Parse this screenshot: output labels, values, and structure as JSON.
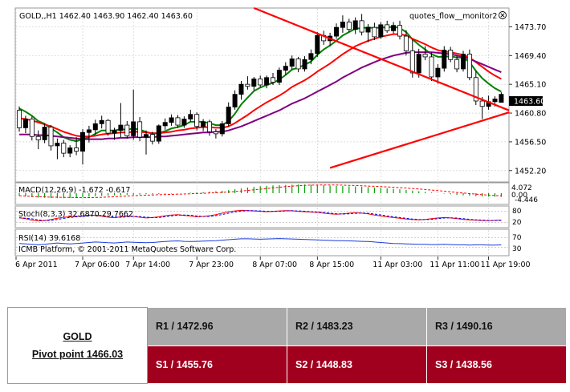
{
  "colors": {
    "background": "#ffffff",
    "grid": "#c8c8c8",
    "candle_up": "#000000",
    "candle_down": "#ffffff",
    "ma_fast": "#008000",
    "ma_mid": "#ff0000",
    "ma_slow": "#800080",
    "trendline": "#ff0000",
    "macd_hist": "#00a000",
    "macd_signal": "#ff0000",
    "stoch_main": "#ff0000",
    "stoch_signal": "#0000ff",
    "rsi": "#1b3bd8",
    "price_badge_bg": "#000000",
    "pivot_r_bg": "#a9a9a9",
    "pivot_s_bg": "#a0001e"
  },
  "chart": {
    "symbol_line": "GOLD,,H1  1462.40 1463.90 1462.40 1463.60",
    "watermark": "quotes_flow__monitor2",
    "current_price": "1463.60",
    "price_ticks": [
      "1473.70",
      "1469.40",
      "1465.10",
      "1460.80",
      "1456.50",
      "1452.20"
    ],
    "time_labels": [
      "6 Apr 2011",
      "7 Apr 06:00",
      "7 Apr 14:00",
      "7 Apr 23:00",
      "8 Apr 07:00",
      "8 Apr 15:00",
      "11 Apr 03:00",
      "11 Apr 11:00",
      "11 Apr 19:00"
    ],
    "macd": {
      "label": "MACD(12,26,9) -1.672 -0.617",
      "ticks": [
        "4.072",
        "0.00",
        "-4.446"
      ]
    },
    "stoch": {
      "label": "Stoch(8,3,3) 32.6870 29.7662",
      "ticks": [
        "80",
        "20"
      ]
    },
    "rsi": {
      "label": "RSI(14) 39.6168",
      "ticks": [
        "70",
        "30"
      ]
    },
    "copyright": "ICMB Platform, © 2001-2011 MetaQuotes Software Corp."
  },
  "chart_data": {
    "type": "candlestick",
    "symbol": "GOLD",
    "timeframe": "H1",
    "ylim": [
      1450.5,
      1476.5
    ],
    "candles": [
      [
        1461.2,
        1461.8,
        1458.0,
        1458.6
      ],
      [
        1458.6,
        1460.4,
        1457.8,
        1459.9
      ],
      [
        1459.9,
        1460.3,
        1456.7,
        1457.3
      ],
      [
        1457.3,
        1458.2,
        1455.4,
        1456.8
      ],
      [
        1456.8,
        1459.2,
        1456.3,
        1458.7
      ],
      [
        1458.7,
        1459.0,
        1455.2,
        1455.9
      ],
      [
        1455.9,
        1457.0,
        1453.9,
        1456.3
      ],
      [
        1456.3,
        1456.8,
        1454.2,
        1454.8
      ],
      [
        1454.8,
        1456.0,
        1454.2,
        1455.6
      ],
      [
        1455.6,
        1457.2,
        1454.5,
        1455.1
      ],
      [
        1455.1,
        1458.4,
        1453.1,
        1457.9
      ],
      [
        1457.9,
        1458.9,
        1456.4,
        1458.3
      ],
      [
        1458.3,
        1459.8,
        1457.6,
        1459.2
      ],
      [
        1459.2,
        1460.4,
        1458.5,
        1459.7
      ],
      [
        1459.7,
        1459.9,
        1457.4,
        1457.8
      ],
      [
        1457.8,
        1458.6,
        1456.8,
        1458.2
      ],
      [
        1458.2,
        1462.3,
        1457.2,
        1459.0
      ],
      [
        1459.0,
        1459.6,
        1457.0,
        1457.4
      ],
      [
        1457.4,
        1464.3,
        1456.8,
        1459.5
      ],
      [
        1459.5,
        1460.2,
        1456.6,
        1457.2
      ],
      [
        1457.2,
        1458.2,
        1454.6,
        1457.6
      ],
      [
        1457.6,
        1458.0,
        1456.1,
        1456.6
      ],
      [
        1456.6,
        1459.1,
        1456.2,
        1458.9
      ],
      [
        1458.9,
        1460.0,
        1458.3,
        1459.4
      ],
      [
        1459.4,
        1460.6,
        1458.9,
        1460.1
      ],
      [
        1460.1,
        1460.5,
        1458.6,
        1459.0
      ],
      [
        1459.0,
        1460.3,
        1458.6,
        1459.9
      ],
      [
        1459.9,
        1461.3,
        1459.5,
        1460.6
      ],
      [
        1460.6,
        1460.9,
        1458.2,
        1458.8
      ],
      [
        1458.8,
        1459.9,
        1458.1,
        1459.5
      ],
      [
        1459.5,
        1459.8,
        1457.4,
        1458.0
      ],
      [
        1458.0,
        1458.4,
        1457.0,
        1457.7
      ],
      [
        1457.7,
        1459.6,
        1457.3,
        1459.2
      ],
      [
        1459.2,
        1462.4,
        1458.8,
        1461.7
      ],
      [
        1461.7,
        1464.2,
        1461.3,
        1463.6
      ],
      [
        1463.6,
        1465.6,
        1462.8,
        1465.1
      ],
      [
        1465.1,
        1466.3,
        1464.3,
        1464.8
      ],
      [
        1464.8,
        1466.2,
        1464.2,
        1465.9
      ],
      [
        1465.9,
        1466.4,
        1464.6,
        1465.0
      ],
      [
        1465.0,
        1466.4,
        1464.5,
        1466.1
      ],
      [
        1466.1,
        1466.8,
        1465.0,
        1465.4
      ],
      [
        1465.4,
        1467.6,
        1465.0,
        1467.2
      ],
      [
        1467.2,
        1468.4,
        1466.5,
        1467.8
      ],
      [
        1467.8,
        1469.4,
        1467.3,
        1468.9
      ],
      [
        1468.9,
        1469.2,
        1466.9,
        1467.4
      ],
      [
        1467.4,
        1469.3,
        1467.0,
        1468.8
      ],
      [
        1468.8,
        1470.3,
        1468.1,
        1469.7
      ],
      [
        1469.7,
        1472.9,
        1469.2,
        1472.4
      ],
      [
        1472.4,
        1473.1,
        1471.0,
        1471.6
      ],
      [
        1471.6,
        1472.8,
        1470.8,
        1472.3
      ],
      [
        1472.3,
        1474.2,
        1471.9,
        1473.6
      ],
      [
        1473.6,
        1475.4,
        1472.8,
        1474.4
      ],
      [
        1474.4,
        1474.9,
        1472.9,
        1473.3
      ],
      [
        1473.3,
        1475.1,
        1472.6,
        1474.6
      ],
      [
        1474.6,
        1475.6,
        1472.4,
        1472.9
      ],
      [
        1472.9,
        1474.1,
        1471.4,
        1473.6
      ],
      [
        1473.6,
        1474.3,
        1471.7,
        1472.2
      ],
      [
        1472.2,
        1474.4,
        1471.9,
        1474.0
      ],
      [
        1474.0,
        1474.6,
        1472.8,
        1473.1
      ],
      [
        1473.1,
        1474.4,
        1472.7,
        1473.9
      ],
      [
        1473.9,
        1474.6,
        1471.8,
        1472.3
      ],
      [
        1472.3,
        1473.2,
        1469.4,
        1470.1
      ],
      [
        1470.1,
        1471.8,
        1466.1,
        1466.8
      ],
      [
        1466.8,
        1470.4,
        1466.1,
        1469.6
      ],
      [
        1469.6,
        1470.8,
        1468.7,
        1469.2
      ],
      [
        1469.2,
        1469.9,
        1465.6,
        1466.2
      ],
      [
        1466.2,
        1468.1,
        1465.2,
        1467.5
      ],
      [
        1467.5,
        1470.8,
        1467.0,
        1470.2
      ],
      [
        1470.2,
        1470.7,
        1468.4,
        1468.8
      ],
      [
        1468.8,
        1469.4,
        1466.9,
        1467.4
      ],
      [
        1467.4,
        1470.1,
        1467.0,
        1469.6
      ],
      [
        1469.6,
        1470.3,
        1465.7,
        1466.1
      ],
      [
        1466.1,
        1467.1,
        1462.0,
        1462.6
      ],
      [
        1462.6,
        1463.2,
        1459.9,
        1461.8
      ],
      [
        1461.8,
        1463.4,
        1461.3,
        1462.5
      ],
      [
        1462.5,
        1463.3,
        1461.8,
        1462.9
      ],
      [
        1462.4,
        1463.9,
        1462.4,
        1463.6
      ]
    ],
    "series": [
      {
        "name": "MA fast",
        "color": "#008000",
        "values": [
          1461.5,
          1461.0,
          1460.4,
          1459.6,
          1459.2,
          1458.5,
          1457.9,
          1457.2,
          1456.8,
          1456.6,
          1456.9,
          1457.2,
          1457.7,
          1458.2,
          1458.2,
          1458.2,
          1458.4,
          1458.3,
          1458.5,
          1458.3,
          1458.0,
          1457.7,
          1457.8,
          1458.1,
          1458.5,
          1458.7,
          1459.0,
          1459.5,
          1459.5,
          1459.5,
          1459.3,
          1459.0,
          1459.0,
          1459.6,
          1460.7,
          1462.1,
          1463.1,
          1464.1,
          1464.6,
          1465.0,
          1465.3,
          1465.8,
          1466.5,
          1467.3,
          1467.6,
          1468.0,
          1468.5,
          1469.5,
          1470.3,
          1470.9,
          1471.6,
          1472.4,
          1472.9,
          1473.4,
          1473.5,
          1473.6,
          1473.5,
          1473.6,
          1473.6,
          1473.7,
          1473.5,
          1472.9,
          1471.8,
          1471.0,
          1470.3,
          1469.6,
          1469.2,
          1469.2,
          1469.3,
          1469.1,
          1469.1,
          1468.4,
          1467.1,
          1466.0,
          1465.2,
          1464.5,
          1464.0
        ]
      },
      {
        "name": "MA mid",
        "color": "#ff0000",
        "values": [
          1460.0,
          1459.9,
          1459.7,
          1459.4,
          1459.1,
          1458.8,
          1458.4,
          1458.0,
          1457.7,
          1457.4,
          1457.3,
          1457.3,
          1457.4,
          1457.6,
          1457.7,
          1457.8,
          1457.9,
          1457.9,
          1458.0,
          1458.0,
          1457.9,
          1457.8,
          1457.8,
          1457.9,
          1458.0,
          1458.2,
          1458.3,
          1458.5,
          1458.6,
          1458.7,
          1458.7,
          1458.6,
          1458.6,
          1458.8,
          1459.3,
          1459.9,
          1460.5,
          1461.2,
          1461.8,
          1462.4,
          1462.9,
          1463.4,
          1464.0,
          1464.7,
          1465.2,
          1465.7,
          1466.3,
          1467.0,
          1467.6,
          1468.2,
          1468.9,
          1469.6,
          1470.2,
          1470.8,
          1471.2,
          1471.6,
          1471.9,
          1472.2,
          1472.4,
          1472.6,
          1472.6,
          1472.4,
          1471.9,
          1471.5,
          1471.1,
          1470.6,
          1470.2,
          1470.0,
          1469.9,
          1469.7,
          1469.5,
          1469.1,
          1468.4,
          1467.7,
          1467.0,
          1466.4,
          1465.9
        ]
      },
      {
        "name": "MA slow",
        "color": "#800080",
        "values": [
          1457.6,
          1457.6,
          1457.6,
          1457.5,
          1457.5,
          1457.4,
          1457.3,
          1457.2,
          1457.1,
          1457.0,
          1456.9,
          1456.9,
          1456.9,
          1456.9,
          1457.0,
          1457.0,
          1457.1,
          1457.1,
          1457.2,
          1457.2,
          1457.2,
          1457.2,
          1457.3,
          1457.3,
          1457.4,
          1457.5,
          1457.6,
          1457.7,
          1457.8,
          1457.9,
          1457.9,
          1458.0,
          1458.0,
          1458.2,
          1458.5,
          1458.8,
          1459.2,
          1459.6,
          1460.0,
          1460.4,
          1460.8,
          1461.2,
          1461.7,
          1462.2,
          1462.6,
          1463.0,
          1463.5,
          1464.0,
          1464.5,
          1465.0,
          1465.5,
          1466.1,
          1466.6,
          1467.1,
          1467.6,
          1468.0,
          1468.4,
          1468.8,
          1469.1,
          1469.4,
          1469.6,
          1469.8,
          1469.9,
          1469.9,
          1469.9,
          1469.9,
          1469.8,
          1469.7,
          1469.6,
          1469.4,
          1469.2,
          1468.9,
          1468.5,
          1468.1,
          1467.7,
          1467.3,
          1466.9
        ]
      }
    ],
    "trendlines": [
      {
        "from": [
          37,
          1476.5
        ],
        "to": [
          79,
          1461.2
        ]
      },
      {
        "from": [
          49,
          1452.6
        ],
        "to": [
          79,
          1460.9
        ]
      }
    ],
    "indicators": {
      "macd": {
        "value": -1.672,
        "signal": -0.617,
        "ylim": [
          -4.446,
          4.072
        ],
        "histogram": [
          -1.2,
          -1.5,
          -1.8,
          -2.0,
          -2.1,
          -2.2,
          -2.3,
          -2.3,
          -2.2,
          -2.0,
          -1.8,
          -1.6,
          -1.4,
          -1.2,
          -1.1,
          -1.0,
          -0.9,
          -0.8,
          -0.7,
          -0.6,
          -0.5,
          -0.5,
          -0.4,
          -0.3,
          -0.2,
          -0.1,
          0.0,
          0.2,
          0.3,
          0.5,
          0.7,
          0.9,
          1.1,
          1.4,
          1.8,
          2.2,
          2.6,
          2.9,
          3.2,
          3.4,
          3.6,
          3.7,
          3.8,
          3.9,
          4.0,
          4.0,
          3.9,
          3.8,
          3.7,
          3.5,
          3.4,
          3.3,
          3.2,
          3.1,
          3.0,
          2.8,
          2.6,
          2.4,
          2.2,
          2.0,
          1.8,
          1.5,
          1.2,
          0.9,
          0.6,
          0.3,
          0.1,
          -0.2,
          -0.5,
          -0.8,
          -1.0,
          -1.2,
          -1.4,
          -1.5,
          -1.6,
          -1.6,
          -1.7
        ]
      },
      "stochastic": {
        "main": 32.687,
        "signal": 29.7662,
        "levels": [
          80,
          20
        ],
        "values": [
          45,
          40,
          32,
          28,
          30,
          35,
          42,
          48,
          50,
          52,
          55,
          60,
          58,
          54,
          48,
          45,
          50,
          55,
          52,
          48,
          44,
          46,
          50,
          56,
          60,
          62,
          58,
          55,
          50,
          52,
          56,
          62,
          70,
          78,
          82,
          85,
          84,
          82,
          80,
          78,
          80,
          82,
          84,
          83,
          80,
          78,
          76,
          74,
          70,
          66,
          64,
          66,
          70,
          72,
          70,
          66,
          60,
          55,
          50,
          46,
          42,
          38,
          35,
          34,
          36,
          40,
          44,
          46,
          44,
          40,
          36,
          34,
          32,
          30,
          29,
          31,
          32.7
        ]
      },
      "rsi": {
        "value": 39.6168,
        "levels": [
          70,
          30
        ],
        "values": [
          46,
          44,
          42,
          40,
          42,
          45,
          48,
          46,
          44,
          46,
          48,
          50,
          52,
          51,
          49,
          48,
          50,
          52,
          51,
          50,
          49,
          50,
          52,
          54,
          56,
          57,
          55,
          54,
          55,
          56,
          57,
          58,
          60,
          62,
          64,
          66,
          66,
          65,
          64,
          65,
          66,
          67,
          66,
          65,
          64,
          63,
          62,
          61,
          60,
          59,
          58,
          58,
          57,
          56,
          55,
          54,
          52,
          50,
          48,
          46,
          45,
          44,
          43,
          42,
          42,
          41,
          41,
          42,
          41,
          40,
          40,
          39,
          40,
          40,
          39,
          39,
          39.6
        ]
      }
    }
  },
  "pivot": {
    "symbol": "GOLD",
    "pivot_label": "Pivot point 1466.03",
    "r1": "R1 / 1472.96",
    "r2": "R2 / 1483.23",
    "r3": "R3 / 1490.16",
    "s1": "S1 / 1455.76",
    "s2": "S2 / 1448.83",
    "s3": "S3 / 1438.56"
  }
}
